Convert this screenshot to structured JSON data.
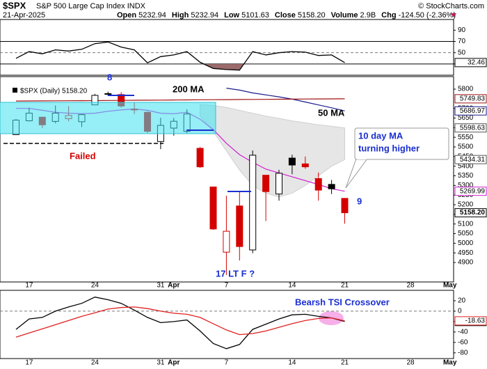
{
  "header": {
    "symbol": "$SPX",
    "name": "S&P 500 Large Cap Index",
    "exchange": "INDX",
    "date": "21-Apr-2025",
    "credit": "© StockCharts.com",
    "quote": [
      {
        "label": "Open",
        "value": "5232.94"
      },
      {
        "label": "High",
        "value": "5232.94"
      },
      {
        "label": "Low",
        "value": "5101.63"
      },
      {
        "label": "Close",
        "value": "5158.20"
      },
      {
        "label": "Volume",
        "value": "2.9B"
      },
      {
        "label": "Chg",
        "value": "-124.50 (-2.36%)"
      }
    ]
  },
  "chart_data": [
    {
      "type": "line",
      "ylim": [
        10,
        109
      ],
      "yticks": [
        90,
        70,
        50,
        30
      ],
      "ref_lines": [
        {
          "value": 70,
          "style": "solid"
        },
        {
          "value": 50,
          "style": "dashed"
        },
        {
          "value": 30,
          "style": "solid"
        }
      ],
      "fill_below": {
        "value": 30,
        "color": "#9b6b6b"
      },
      "series": [
        {
          "color": "#000000",
          "values": [
            40,
            52,
            48,
            55,
            53,
            56,
            66,
            69,
            60,
            55,
            32,
            43,
            46,
            52,
            33,
            22,
            20,
            19,
            52,
            46,
            50,
            52,
            51,
            45,
            46,
            32.46,
            null,
            null,
            null,
            null,
            null,
            null,
            null,
            null
          ]
        }
      ]
    },
    {
      "type": "candlestick",
      "legend": "$SPX (Daily) 5158.20",
      "close_label": "5158.20",
      "categories": [
        null,
        "17",
        null,
        null,
        null,
        null,
        "24",
        null,
        null,
        null,
        null,
        "31",
        "Apr",
        null,
        null,
        null,
        "7",
        null,
        null,
        null,
        null,
        "14",
        null,
        null,
        null,
        "21",
        null,
        null,
        null,
        null,
        "28",
        null,
        null,
        "May"
      ],
      "open": [
        5563.85,
        5635.6,
        5654.53,
        5632.37,
        5646.92,
        5630.73,
        5718.08,
        5775.9,
        5771.66,
        5695.64,
        5679.54,
        5527.91,
        5597.53,
        5580.76,
        5492.74,
        5292.14,
        4953.79,
        5193.57,
        4965.28,
        5353.15,
        5255.56,
        5441.96,
        5411.99,
        5335.75,
        5305.45,
        5232.94,
        null,
        null,
        null,
        null,
        null,
        null,
        null,
        null
      ],
      "high": [
        5645.27,
        5703.52,
        5654.53,
        5715.33,
        5711.15,
        5670.84,
        5775.14,
        5786.95,
        5784.38,
        5732.28,
        5685.89,
        5651.25,
        5650.57,
        5695.31,
        5499.53,
        5292.14,
        5246.57,
        5267.47,
        5481.34,
        5353.15,
        5381.46,
        5459.46,
        5450.41,
        5367.24,
        5328.31,
        5232.94,
        null,
        null,
        null,
        null,
        null,
        null,
        null,
        null
      ],
      "low": [
        5563.85,
        5632.27,
        5597.76,
        5622.2,
        5632.72,
        5603.1,
        5718.08,
        5764.02,
        5703.82,
        5670.94,
        5572.42,
        5488.73,
        5558.52,
        5571.48,
        5390.83,
        5069.9,
        4835.04,
        4910.42,
        4948.43,
        5115.27,
        5220.77,
        5358.02,
        5386.44,
        5220.79,
        5255.58,
        5101.63,
        null,
        null,
        null,
        null,
        null,
        null,
        null,
        null
      ],
      "close": [
        5638.94,
        5675.12,
        5614.66,
        5675.29,
        5662.89,
        5667.56,
        5767.57,
        5776.65,
        5712.2,
        5693.31,
        5580.94,
        5611.85,
        5633.07,
        5670.97,
        5396.52,
        5074.08,
        5062.25,
        4982.77,
        5456.9,
        5268.05,
        5363.36,
        5405.97,
        5396.63,
        5275.7,
        5282.7,
        5158.2,
        null,
        null,
        null,
        null,
        null,
        null,
        null,
        null
      ],
      "up_color": "#000000",
      "down_color": "#d40000",
      "ylim": [
        4799,
        5865
      ],
      "yticks": [
        5800,
        5700,
        5650,
        5600,
        5550,
        5500,
        5450,
        5400,
        5350,
        5300,
        5250,
        5200,
        5150,
        5100,
        5050,
        5000,
        4950,
        4900
      ],
      "band": {
        "color": "#e6e6e6",
        "upper": [
          null,
          null,
          null,
          null,
          null,
          null,
          null,
          null,
          null,
          null,
          null,
          null,
          null,
          null,
          5720,
          5715,
          5705,
          5690,
          5675,
          5660,
          5648,
          5635,
          5625,
          5615,
          5607,
          5598.63,
          null,
          null,
          null,
          null,
          null,
          null,
          null,
          null
        ],
        "lower": [
          null,
          null,
          null,
          null,
          null,
          null,
          null,
          null,
          null,
          null,
          null,
          null,
          null,
          null,
          5660,
          5580,
          5480,
          5380,
          5300,
          5260,
          5240,
          5260,
          5300,
          5350,
          5400,
          5434.31,
          null,
          null,
          null,
          null,
          null,
          null,
          null,
          null
        ]
      },
      "series": [
        {
          "color": "#d020d0",
          "values": [
            5700,
            5700,
            5690,
            5680,
            5675,
            5672,
            5675,
            5685,
            5692,
            5697,
            5690,
            5675,
            5672,
            5680,
            5644,
            5590,
            5519,
            5460,
            5420,
            5385,
            5365,
            5345,
            5325,
            5305,
            5283,
            5269.99,
            null,
            null,
            null,
            null,
            null,
            null,
            null,
            null
          ]
        },
        {
          "color": "#1a1a8c",
          "values": [
            null,
            null,
            null,
            null,
            null,
            null,
            null,
            null,
            null,
            null,
            null,
            null,
            null,
            null,
            null,
            null,
            5805,
            5795,
            5780,
            5770,
            5760,
            5748,
            5733,
            5718,
            5703,
            5686.97,
            null,
            null,
            null,
            null,
            null,
            null,
            null,
            null
          ]
        },
        {
          "color": "#a01010",
          "values": [
            5738.0,
            5738.4,
            5738.8,
            5739.2,
            5739.6,
            5740.0,
            5740.5,
            5741.0,
            5741.5,
            5742.0,
            5742.5,
            5743.0,
            5743.5,
            5744.0,
            5744.5,
            5745.0,
            5745.5,
            5746.0,
            5746.5,
            5747.0,
            5747.5,
            5748.0,
            5748.5,
            5749.0,
            5749.4,
            5749.83,
            null,
            null,
            null,
            null,
            null,
            null,
            null,
            null
          ]
        }
      ],
      "annotations": [
        "8",
        "200 MA",
        "50 MA",
        "Failed",
        "17 LT F  ?",
        "9",
        "10 day MA",
        "turning higher"
      ]
    },
    {
      "type": "line",
      "ylim": [
        -91,
        40
      ],
      "yticks": [
        20,
        0,
        -20,
        -40,
        -60,
        -80
      ],
      "ref_lines": [
        {
          "value": 0,
          "style": "dashed"
        }
      ],
      "categories": [
        null,
        "17",
        null,
        null,
        null,
        null,
        "24",
        null,
        null,
        null,
        null,
        "31",
        "Apr",
        null,
        null,
        null,
        "7",
        null,
        null,
        null,
        null,
        "14",
        null,
        null,
        null,
        "21",
        null,
        null,
        null,
        null,
        "28",
        null,
        null,
        "May"
      ],
      "annotation": "Bearsh TSI Crossover",
      "series": [
        {
          "color": "#000000",
          "values": [
            -35,
            -15,
            -12,
            0,
            8,
            15,
            27,
            22,
            15,
            2,
            -12,
            -22,
            -20,
            -17,
            -38,
            -62,
            -72,
            -64,
            -35,
            -25,
            -15,
            -7,
            -6,
            -10,
            -13,
            -19.85,
            null,
            null,
            null,
            null,
            null,
            null,
            null,
            null
          ]
        },
        {
          "color": "#e02020",
          "values": [
            -50,
            -42,
            -34,
            -26,
            -18,
            -10,
            -3,
            4,
            7,
            8,
            5,
            0,
            -4,
            -6,
            -12,
            -24,
            -36,
            -45,
            -43,
            -38,
            -31,
            -24,
            -18,
            -14,
            -13,
            -18.63,
            null,
            null,
            null,
            null,
            null,
            null,
            null,
            null
          ]
        }
      ]
    }
  ]
}
